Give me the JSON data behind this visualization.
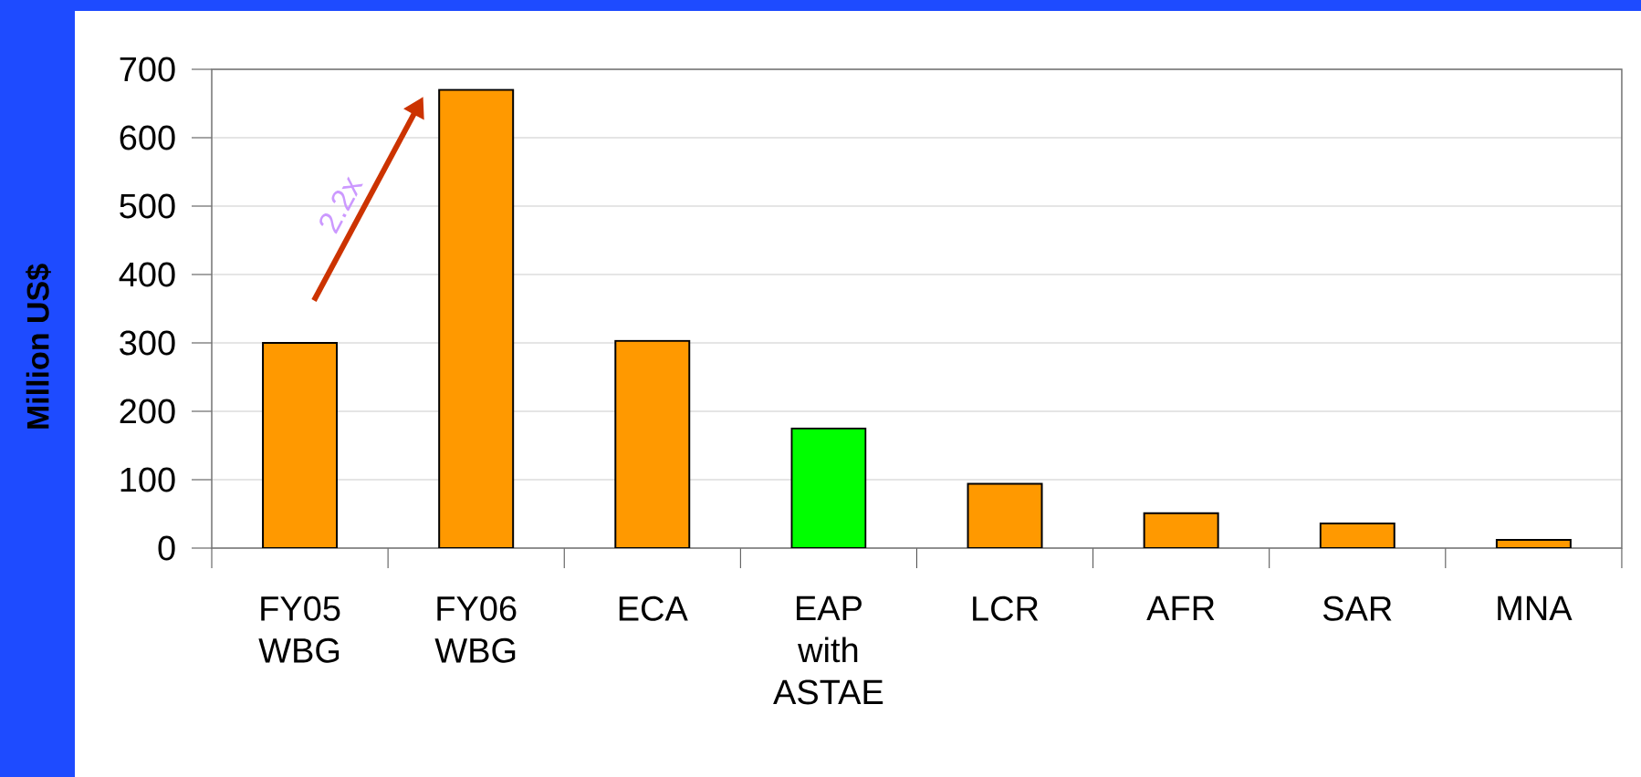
{
  "chart_data": {
    "type": "bar",
    "ylabel": "Million US$",
    "categories": [
      "FY05 WBG",
      "FY06 WBG",
      "ECA",
      "EAP with ASTAE",
      "LCR",
      "AFR",
      "SAR",
      "MNA"
    ],
    "values": [
      300,
      670,
      303,
      175,
      94,
      51,
      36,
      12
    ],
    "colors": [
      "#ff9900",
      "#ff9900",
      "#ff9900",
      "#00ff00",
      "#ff9900",
      "#ff9900",
      "#ff9900",
      "#ff9900"
    ],
    "ylim": [
      0,
      700
    ],
    "yticks": [
      0,
      100,
      200,
      300,
      400,
      500,
      600,
      700
    ],
    "grid": "y",
    "annotations": [
      "2.2x"
    ]
  }
}
